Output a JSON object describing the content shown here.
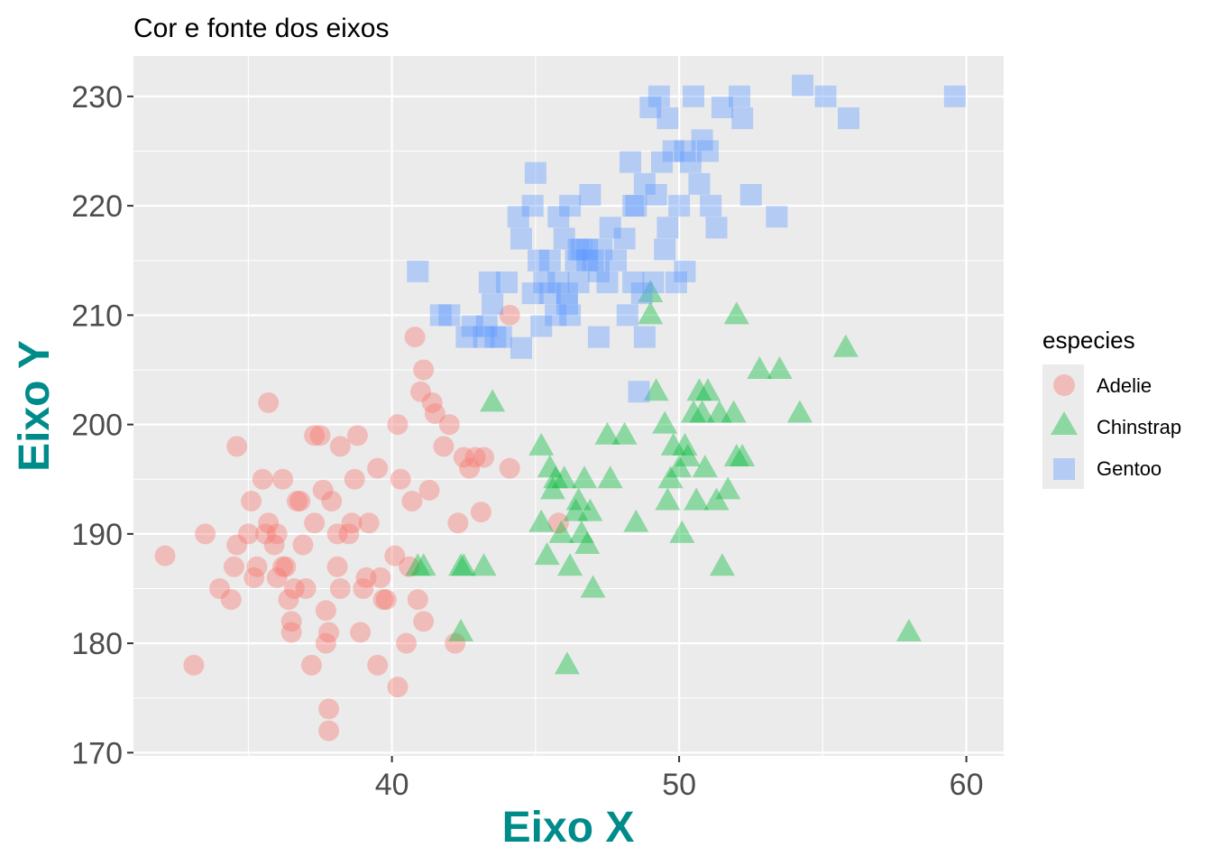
{
  "chart_data": {
    "type": "scatter",
    "title": "Cor e fonte dos eixos",
    "xlabel": "Eixo X",
    "ylabel": "Eixo Y",
    "xlim": [
      31,
      61.3
    ],
    "ylim": [
      169.7,
      233.7
    ],
    "x_ticks": [
      40,
      50,
      60
    ],
    "x_tick_labels": [
      "40",
      "50",
      "60"
    ],
    "y_ticks": [
      170,
      180,
      190,
      200,
      210,
      220,
      230
    ],
    "y_tick_labels": [
      "170",
      "180",
      "190",
      "200",
      "210",
      "220",
      "230"
    ],
    "grid": true,
    "legend": {
      "title": "especies",
      "placement": "right"
    },
    "series": [
      {
        "name": "Adelie",
        "shape": "circle",
        "color": "#F8766D",
        "points": [
          [
            32.1,
            188
          ],
          [
            33.1,
            178
          ],
          [
            33.5,
            190
          ],
          [
            34.0,
            185
          ],
          [
            34.4,
            184
          ],
          [
            34.5,
            187
          ],
          [
            34.6,
            189
          ],
          [
            34.6,
            198
          ],
          [
            35.0,
            190
          ],
          [
            35.1,
            193
          ],
          [
            35.2,
            186
          ],
          [
            35.3,
            187
          ],
          [
            35.5,
            195
          ],
          [
            35.6,
            190
          ],
          [
            35.7,
            191
          ],
          [
            35.7,
            202
          ],
          [
            35.9,
            189
          ],
          [
            36.0,
            186
          ],
          [
            36.0,
            190
          ],
          [
            36.2,
            187
          ],
          [
            36.2,
            195
          ],
          [
            36.3,
            187
          ],
          [
            36.4,
            184
          ],
          [
            36.5,
            182
          ],
          [
            36.5,
            181
          ],
          [
            36.6,
            185
          ],
          [
            36.7,
            193
          ],
          [
            36.8,
            193
          ],
          [
            36.9,
            189
          ],
          [
            37.0,
            185
          ],
          [
            37.2,
            178
          ],
          [
            37.3,
            191
          ],
          [
            37.3,
            199
          ],
          [
            37.5,
            199
          ],
          [
            37.6,
            194
          ],
          [
            37.7,
            180
          ],
          [
            37.7,
            183
          ],
          [
            37.8,
            174
          ],
          [
            37.8,
            181
          ],
          [
            37.8,
            172
          ],
          [
            37.9,
            193
          ],
          [
            38.1,
            187
          ],
          [
            38.1,
            190
          ],
          [
            38.2,
            185
          ],
          [
            38.2,
            198
          ],
          [
            38.5,
            190
          ],
          [
            38.6,
            191
          ],
          [
            38.7,
            195
          ],
          [
            38.8,
            199
          ],
          [
            38.9,
            181
          ],
          [
            39.0,
            185
          ],
          [
            39.1,
            186
          ],
          [
            39.2,
            191
          ],
          [
            39.5,
            178
          ],
          [
            39.5,
            196
          ],
          [
            39.6,
            186
          ],
          [
            39.7,
            184
          ],
          [
            39.8,
            184
          ],
          [
            40.1,
            188
          ],
          [
            40.2,
            176
          ],
          [
            40.2,
            200
          ],
          [
            40.3,
            195
          ],
          [
            40.5,
            180
          ],
          [
            40.6,
            187
          ],
          [
            40.7,
            193
          ],
          [
            40.8,
            208
          ],
          [
            40.9,
            184
          ],
          [
            41.0,
            203
          ],
          [
            41.1,
            182
          ],
          [
            41.1,
            205
          ],
          [
            41.3,
            194
          ],
          [
            41.4,
            202
          ],
          [
            41.5,
            201
          ],
          [
            41.8,
            198
          ],
          [
            42.0,
            200
          ],
          [
            42.2,
            180
          ],
          [
            42.3,
            191
          ],
          [
            42.5,
            197
          ],
          [
            42.7,
            196
          ],
          [
            42.9,
            197
          ],
          [
            43.1,
            192
          ],
          [
            43.2,
            197
          ],
          [
            44.1,
            196
          ],
          [
            44.1,
            210
          ],
          [
            45.8,
            191
          ]
        ]
      },
      {
        "name": "Chinstrap",
        "shape": "triangle",
        "color": "#00BA38",
        "points": [
          [
            40.9,
            187
          ],
          [
            41.1,
            187
          ],
          [
            42.4,
            181
          ],
          [
            42.4,
            187
          ],
          [
            42.5,
            187
          ],
          [
            43.2,
            187
          ],
          [
            43.5,
            202
          ],
          [
            45.2,
            198
          ],
          [
            45.2,
            191
          ],
          [
            45.4,
            188
          ],
          [
            45.5,
            196
          ],
          [
            45.6,
            194
          ],
          [
            45.7,
            195
          ],
          [
            45.9,
            190
          ],
          [
            46.0,
            195
          ],
          [
            46.1,
            178
          ],
          [
            46.2,
            187
          ],
          [
            46.4,
            192
          ],
          [
            46.5,
            193
          ],
          [
            46.6,
            190
          ],
          [
            46.7,
            195
          ],
          [
            46.8,
            189
          ],
          [
            46.9,
            192
          ],
          [
            47.0,
            185
          ],
          [
            47.5,
            199
          ],
          [
            47.6,
            195
          ],
          [
            48.1,
            199
          ],
          [
            48.5,
            191
          ],
          [
            49.0,
            212
          ],
          [
            49.0,
            210
          ],
          [
            49.2,
            203
          ],
          [
            49.5,
            200
          ],
          [
            49.6,
            193
          ],
          [
            49.7,
            195
          ],
          [
            49.8,
            198
          ],
          [
            50.0,
            196
          ],
          [
            50.1,
            190
          ],
          [
            50.2,
            198
          ],
          [
            50.3,
            197
          ],
          [
            50.5,
            201
          ],
          [
            50.6,
            193
          ],
          [
            50.7,
            203
          ],
          [
            50.8,
            201
          ],
          [
            50.9,
            196
          ],
          [
            51.0,
            203
          ],
          [
            51.3,
            193
          ],
          [
            51.4,
            201
          ],
          [
            51.5,
            187
          ],
          [
            51.7,
            194
          ],
          [
            51.9,
            201
          ],
          [
            52.0,
            210
          ],
          [
            52.0,
            197
          ],
          [
            52.2,
            197
          ],
          [
            52.8,
            205
          ],
          [
            53.5,
            205
          ],
          [
            54.2,
            201
          ],
          [
            55.8,
            207
          ],
          [
            58.0,
            181
          ]
        ]
      },
      {
        "name": "Gentoo",
        "shape": "square",
        "color": "#619CFF",
        "points": [
          [
            40.9,
            214
          ],
          [
            41.7,
            210
          ],
          [
            42.0,
            210
          ],
          [
            42.6,
            208
          ],
          [
            42.8,
            209
          ],
          [
            43.2,
            208
          ],
          [
            43.4,
            213
          ],
          [
            43.5,
            211
          ],
          [
            43.6,
            208
          ],
          [
            43.8,
            208
          ],
          [
            44.0,
            213
          ],
          [
            44.4,
            219
          ],
          [
            44.5,
            217
          ],
          [
            44.9,
            212
          ],
          [
            45.1,
            215
          ],
          [
            45.2,
            209
          ],
          [
            45.3,
            213
          ],
          [
            45.5,
            212
          ],
          [
            45.7,
            210
          ],
          [
            45.8,
            213
          ],
          [
            46.1,
            211
          ],
          [
            46.2,
            210
          ],
          [
            46.4,
            215
          ],
          [
            46.5,
            213
          ],
          [
            46.8,
            215
          ],
          [
            47.2,
            214
          ],
          [
            47.5,
            213
          ],
          [
            47.8,
            215
          ],
          [
            48.2,
            210
          ],
          [
            48.4,
            213
          ],
          [
            48.7,
            212
          ],
          [
            49.1,
            213
          ],
          [
            49.5,
            216
          ],
          [
            49.9,
            213
          ],
          [
            50.0,
            220
          ],
          [
            50.4,
            224
          ],
          [
            50.7,
            222
          ],
          [
            51.1,
            220
          ],
          [
            51.3,
            218
          ],
          [
            51.5,
            229
          ],
          [
            52.1,
            230
          ],
          [
            52.2,
            228
          ],
          [
            52.5,
            221
          ],
          [
            53.4,
            219
          ],
          [
            54.3,
            231
          ],
          [
            55.1,
            230
          ],
          [
            55.9,
            228
          ],
          [
            59.6,
            230
          ],
          [
            45.0,
            223
          ],
          [
            46.9,
            221
          ],
          [
            48.4,
            220
          ],
          [
            48.8,
            222
          ],
          [
            49.0,
            229
          ],
          [
            49.3,
            230
          ],
          [
            49.6,
            228
          ],
          [
            50.2,
            225
          ],
          [
            51.0,
            225
          ],
          [
            44.9,
            220
          ],
          [
            46.2,
            220
          ],
          [
            46.8,
            216
          ],
          [
            47.3,
            216
          ],
          [
            47.6,
            218
          ],
          [
            48.1,
            217
          ],
          [
            48.5,
            220
          ],
          [
            49.2,
            221
          ],
          [
            49.8,
            225
          ],
          [
            50.5,
            230
          ],
          [
            50.8,
            226
          ],
          [
            45.5,
            215
          ],
          [
            46.0,
            217
          ],
          [
            46.5,
            216
          ],
          [
            47.0,
            215
          ],
          [
            48.6,
            203
          ],
          [
            48.8,
            208
          ],
          [
            47.2,
            208
          ],
          [
            46.1,
            212
          ],
          [
            44.5,
            207
          ],
          [
            43.3,
            209
          ],
          [
            49.6,
            218
          ],
          [
            50.2,
            214
          ],
          [
            48.3,
            224
          ],
          [
            49.4,
            224
          ],
          [
            45.8,
            219
          ],
          [
            46.6,
            216
          ]
        ]
      }
    ]
  }
}
